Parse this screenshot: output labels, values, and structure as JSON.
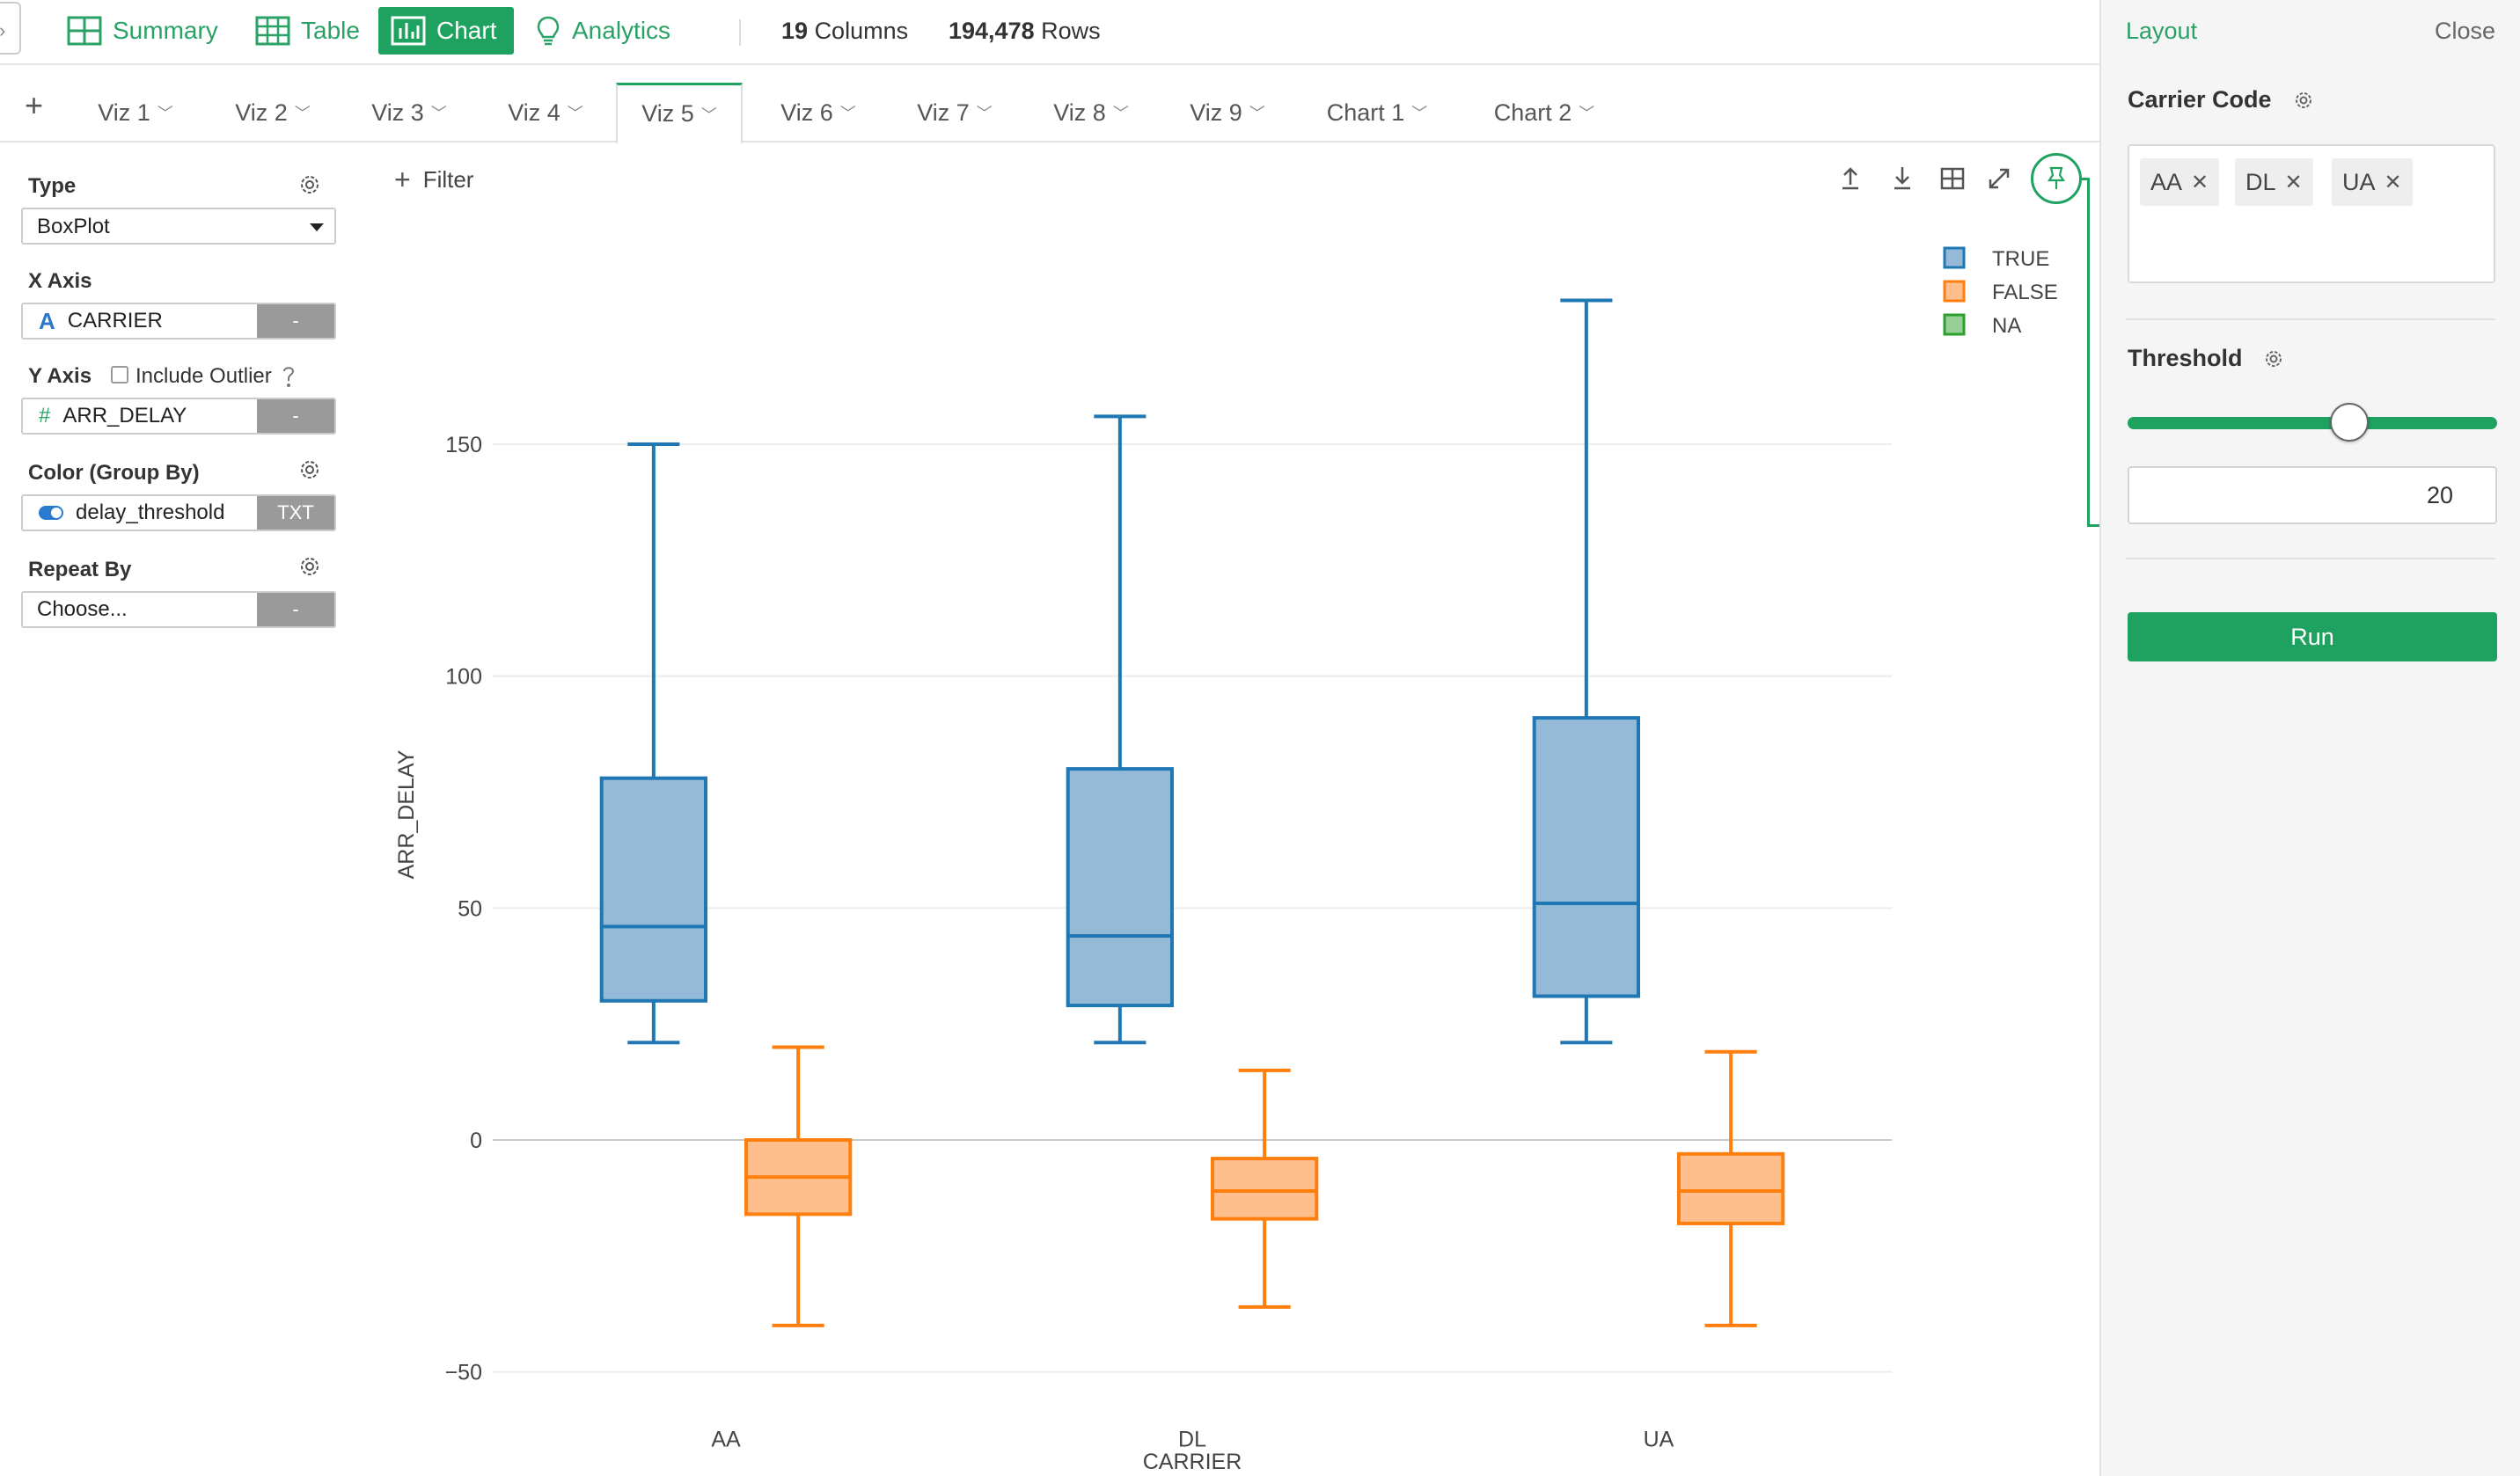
{
  "toolbar": {
    "summary_label": "Summary",
    "table_label": "Table",
    "chart_label": "Chart",
    "analytics_label": "Analytics",
    "columns_count": "19",
    "columns_label": "Columns",
    "rows_count": "194,478",
    "rows_label": "Rows",
    "accent_color": "#1fa25f"
  },
  "tabs": {
    "add_label": "+",
    "items": [
      {
        "label": "Viz 1"
      },
      {
        "label": "Viz 2"
      },
      {
        "label": "Viz 3"
      },
      {
        "label": "Viz 4"
      },
      {
        "label": "Viz 5"
      },
      {
        "label": "Viz 6"
      },
      {
        "label": "Viz 7"
      },
      {
        "label": "Viz 8"
      },
      {
        "label": "Viz 9"
      },
      {
        "label": "Chart 1"
      },
      {
        "label": "Chart 2"
      }
    ],
    "active": "Viz 5"
  },
  "config": {
    "type_label": "Type",
    "type_value": "BoxPlot",
    "x_axis_label": "X Axis",
    "x_axis_field": "CARRIER",
    "x_axis_type": "-",
    "y_axis_label": "Y Axis",
    "include_outlier_label": "Include Outlier",
    "include_outlier_checked": false,
    "y_axis_field": "ARR_DELAY",
    "y_axis_type": "-",
    "color_label": "Color (Group By)",
    "color_field": "delay_threshold",
    "color_type": "TXT",
    "repeat_label": "Repeat By",
    "repeat_value": "Choose...",
    "repeat_type": "-"
  },
  "chart_area": {
    "filter_label": "Filter"
  },
  "chart_data": {
    "type": "boxplot",
    "xlabel": "CARRIER",
    "ylabel": "ARR_DELAY",
    "categories": [
      "AA",
      "DL",
      "UA"
    ],
    "ylim": [
      -50,
      180
    ],
    "yticks": [
      -50,
      0,
      50,
      100,
      150
    ],
    "grid": true,
    "legend_position": "top-right",
    "series": [
      {
        "name": "TRUE",
        "color": "#1f77b4",
        "fill": "#94bad8",
        "boxes": [
          {
            "category": "AA",
            "min": 21,
            "q1": 30,
            "median": 46,
            "q3": 78,
            "max": 150
          },
          {
            "category": "DL",
            "min": 21,
            "q1": 29,
            "median": 44,
            "q3": 80,
            "max": 156
          },
          {
            "category": "UA",
            "min": 21,
            "q1": 31,
            "median": 51,
            "q3": 91,
            "max": 181
          }
        ]
      },
      {
        "name": "FALSE",
        "color": "#ff7f0e",
        "fill": "#ffbf8c",
        "boxes": [
          {
            "category": "AA",
            "min": -40,
            "q1": -16,
            "median": -8,
            "q3": 0,
            "max": 20
          },
          {
            "category": "DL",
            "min": -36,
            "q1": -17,
            "median": -11,
            "q3": -4,
            "max": 15
          },
          {
            "category": "UA",
            "min": -40,
            "q1": -18,
            "median": -11,
            "q3": -3,
            "max": 19
          }
        ]
      },
      {
        "name": "NA",
        "color": "#2ca02c",
        "fill": "#96d096",
        "boxes": []
      }
    ]
  },
  "right_panel": {
    "layout_label": "Layout",
    "close_label": "Close",
    "carrier_title": "Carrier Code",
    "carrier_chips": [
      "AA",
      "DL",
      "UA"
    ],
    "threshold_title": "Threshold",
    "threshold_value": "20",
    "slider_fraction": 0.6,
    "run_label": "Run"
  }
}
